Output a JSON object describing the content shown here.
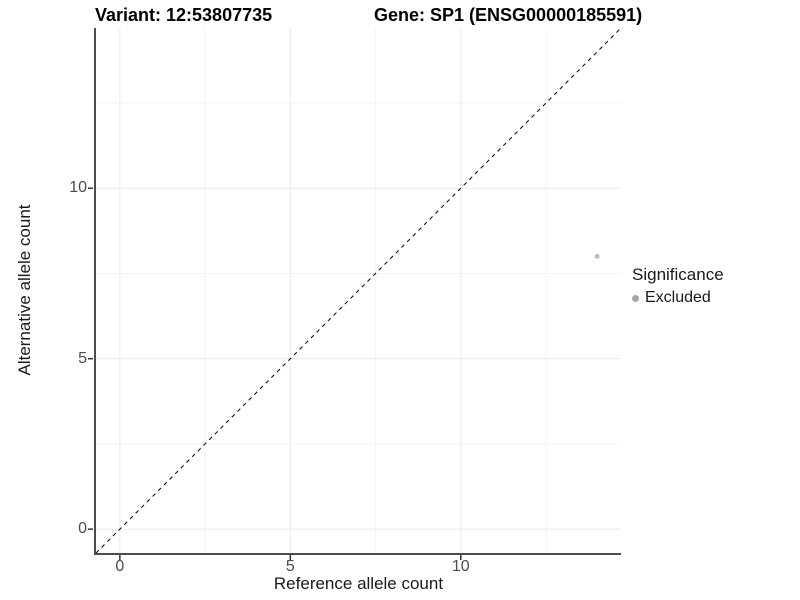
{
  "header": {
    "variant_title": "Variant: 12:53807735",
    "gene_title": "Gene: SP1 (ENSG00000185591)"
  },
  "axes": {
    "x_label": "Reference allele count",
    "y_label": "Alternative allele count"
  },
  "legend": {
    "title": "Significance",
    "items": [
      {
        "label": "Excluded",
        "color": "#a6a6a6"
      }
    ]
  },
  "colors": {
    "background": "#ffffff",
    "axis_line": "#4d4d4d",
    "tick_mark": "#333333",
    "tick_label": "#4d4d4d",
    "grid_major": "#ebebeb",
    "grid_minor": "#f5f5f5",
    "identity_line": "#000000",
    "point": "#bebebe"
  },
  "chart_data": {
    "type": "scatter",
    "title": "Variant: 12:53807735 | Gene: SP1 (ENSG00000185591)",
    "xlabel": "Reference allele count",
    "ylabel": "Alternative allele count",
    "xlim": [
      -0.7,
      14.7
    ],
    "ylim": [
      -0.7,
      14.7
    ],
    "x_ticks": [
      0,
      5,
      10
    ],
    "y_ticks": [
      0,
      5,
      10
    ],
    "x_minor_ticks": [
      2.5,
      7.5,
      12.5
    ],
    "y_minor_ticks": [
      2.5,
      7.5,
      12.5
    ],
    "grid": "on",
    "legend_position": "right",
    "series": [
      {
        "name": "Excluded",
        "color": "#bebebe",
        "points": [
          {
            "x": 14,
            "y": 8
          }
        ]
      }
    ],
    "reference_line": {
      "slope": 1,
      "intercept": 0,
      "style": "dashed",
      "color": "#000000"
    }
  }
}
